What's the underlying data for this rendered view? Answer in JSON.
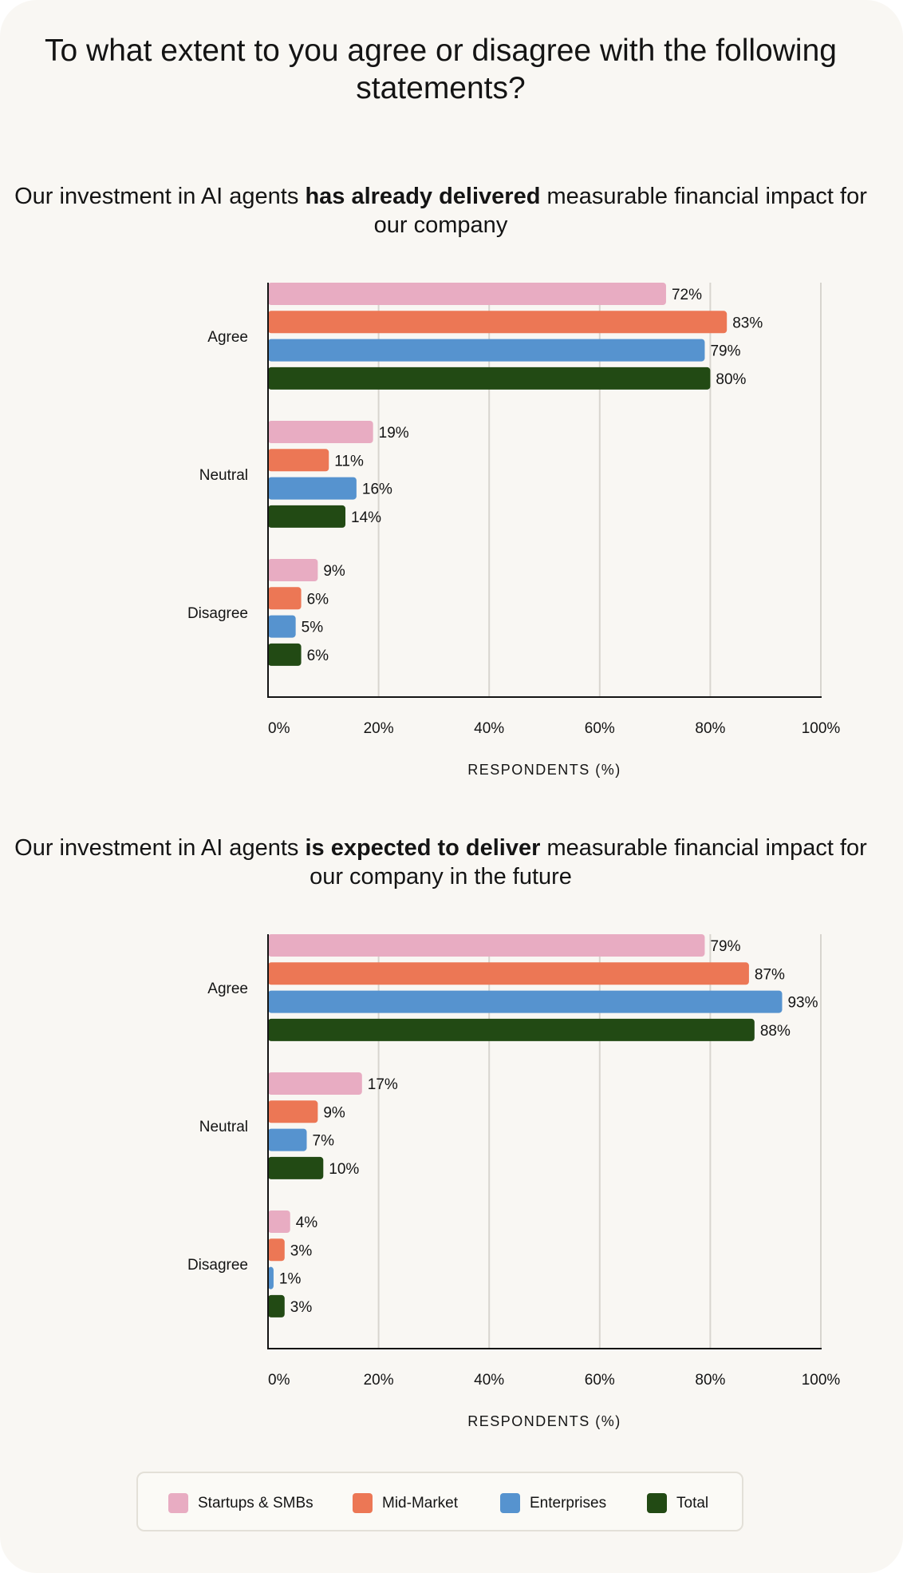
{
  "title": "To what extent to you agree or disagree with the following statements?",
  "colors": {
    "startups": "#e8acc2",
    "midmarket": "#ec7755",
    "enterprises": "#5693cf",
    "total": "#224a14",
    "grid": "#d8d5cf",
    "axis": "#141414"
  },
  "legend": {
    "items": [
      {
        "label": "Startups & SMBs",
        "color": "#e8acc2"
      },
      {
        "label": "Mid-Market",
        "color": "#ec7755"
      },
      {
        "label": "Enterprises",
        "color": "#5693cf"
      },
      {
        "label": "Total",
        "color": "#224a14"
      }
    ]
  },
  "chart_data": [
    {
      "type": "bar",
      "orientation": "horizontal",
      "title_parts": [
        "Our investment in AI agents ",
        "has already delivered",
        " measurable financial  impact for our company"
      ],
      "categories": [
        "Agree",
        "Neutral",
        "Disagree"
      ],
      "series": [
        {
          "name": "Startups & SMBs",
          "values": [
            72,
            19,
            9
          ]
        },
        {
          "name": "Mid-Market",
          "values": [
            83,
            11,
            6
          ]
        },
        {
          "name": "Enterprises",
          "values": [
            79,
            16,
            5
          ]
        },
        {
          "name": "Total",
          "values": [
            80,
            14,
            6
          ]
        }
      ],
      "xlabel": "RESPONDENTS (%)",
      "xlim": [
        0,
        100
      ],
      "xticks": [
        0,
        20,
        40,
        60,
        80,
        100
      ],
      "tick_labels": [
        "0%",
        "20%",
        "40%",
        "60%",
        "80%",
        "100%"
      ],
      "value_suffix": "%",
      "grid": true
    },
    {
      "type": "bar",
      "orientation": "horizontal",
      "title_parts": [
        "Our investment in AI agents ",
        "is expected to deliver",
        " measurable financial impact for our company in the future"
      ],
      "categories": [
        "Agree",
        "Neutral",
        "Disagree"
      ],
      "series": [
        {
          "name": "Startups & SMBs",
          "values": [
            79,
            17,
            4
          ]
        },
        {
          "name": "Mid-Market",
          "values": [
            87,
            9,
            3
          ]
        },
        {
          "name": "Enterprises",
          "values": [
            93,
            7,
            1
          ]
        },
        {
          "name": "Total",
          "values": [
            88,
            10,
            3
          ]
        }
      ],
      "xlabel": "RESPONDENTS (%)",
      "xlim": [
        0,
        100
      ],
      "xticks": [
        0,
        20,
        40,
        60,
        80,
        100
      ],
      "tick_labels": [
        "0%",
        "20%",
        "40%",
        "60%",
        "80%",
        "100%"
      ],
      "value_suffix": "%",
      "grid": true
    }
  ]
}
